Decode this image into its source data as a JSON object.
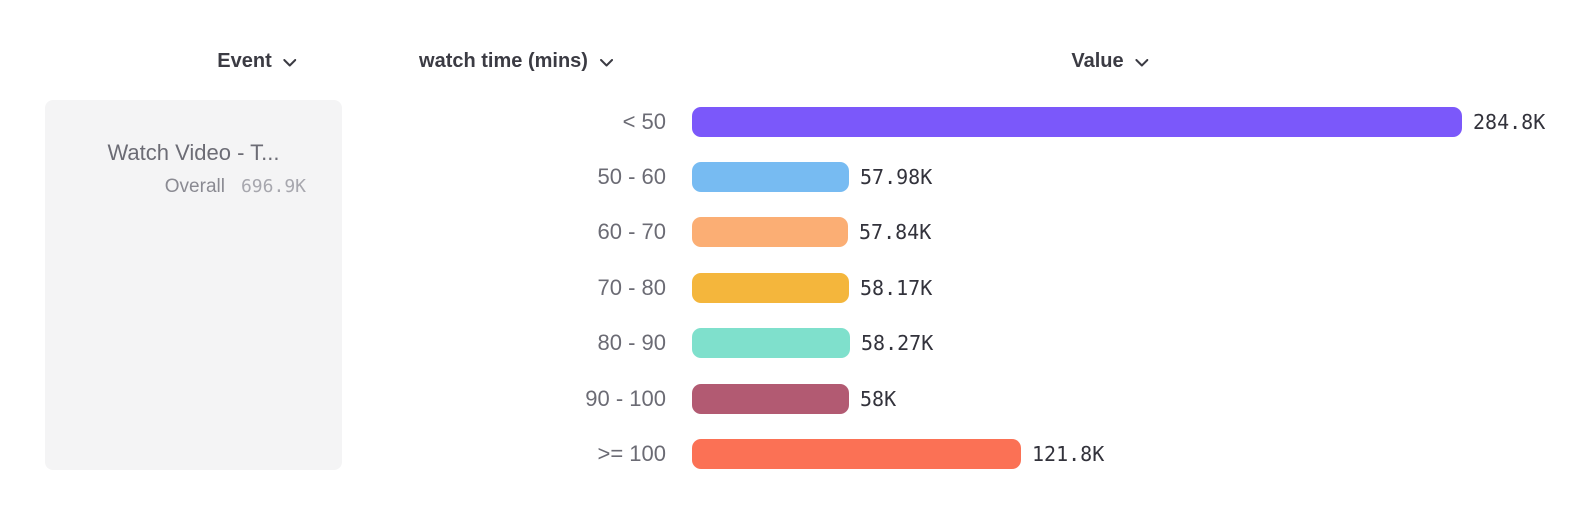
{
  "header": {
    "columns": [
      {
        "label": "Event"
      },
      {
        "label": "watch time (mins)"
      },
      {
        "label": "Value"
      }
    ]
  },
  "event_card": {
    "title": "Watch Video - T...",
    "overall_label": "Overall",
    "overall_value": "696.9K"
  },
  "chart_data": {
    "type": "bar",
    "orientation": "horizontal",
    "title": "",
    "xlabel": "Value",
    "ylabel": "watch time (mins)",
    "categories": [
      "< 50",
      "50 - 60",
      "60 - 70",
      "70 - 80",
      "80 - 90",
      "90 - 100",
      ">= 100"
    ],
    "values": [
      284.8,
      57.98,
      57.84,
      58.17,
      58.27,
      58,
      121.8
    ],
    "value_labels": [
      "284.8K",
      "57.98K",
      "57.84K",
      "58.17K",
      "58.27K",
      "58K",
      "121.8K"
    ],
    "unit": "K",
    "max_value": 284.8,
    "overall_total": "696.9K",
    "grid": false,
    "colors": [
      "#7b58fa",
      "#77bbf2",
      "#fbae74",
      "#f4b63c",
      "#7fe0cc",
      "#b25a72",
      "#fb7155"
    ]
  },
  "ui_colors": {
    "header_text": "#3b3b43",
    "bucket_label_text": "#6b6b74",
    "value_text": "#32323b",
    "card_background": "#f4f4f5"
  }
}
